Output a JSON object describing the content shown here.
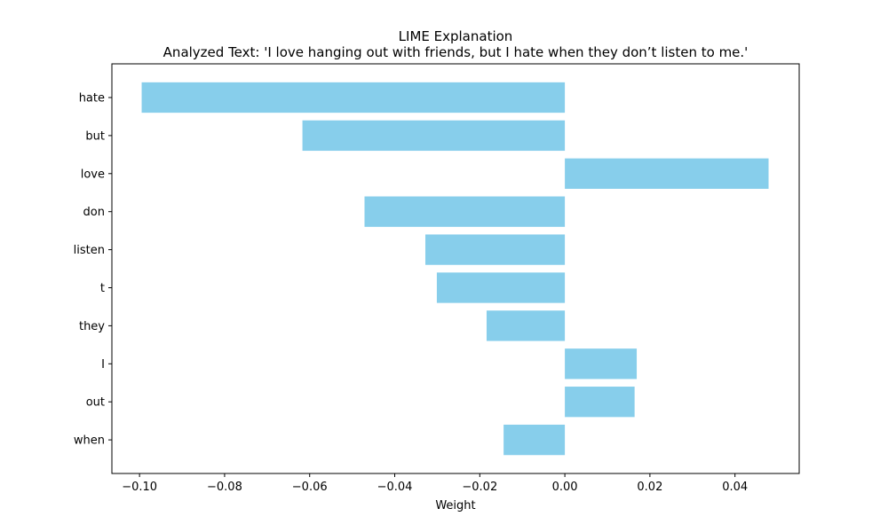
{
  "chart_data": {
    "type": "bar",
    "orientation": "horizontal",
    "title": "LIME Explanation",
    "subtitle": "Analyzed Text: 'I love hanging out with friends, but I hate when they don’t listen to me.'",
    "xlabel": "Weight",
    "ylabel": "",
    "categories": [
      "hate",
      "but",
      "love",
      "don",
      "listen",
      "t",
      "they",
      "I",
      "out",
      "when"
    ],
    "values": [
      -0.0995,
      -0.0617,
      0.0479,
      -0.0471,
      -0.0328,
      -0.0301,
      -0.0184,
      0.0169,
      0.0164,
      -0.0144
    ],
    "xlim": [
      -0.1065,
      0.0551
    ],
    "xticks": [
      -0.1,
      -0.08,
      -0.06,
      -0.04,
      -0.02,
      0.0,
      0.02,
      0.04
    ],
    "xtick_labels": [
      "−0.10",
      "−0.08",
      "−0.06",
      "−0.04",
      "−0.02",
      "0.00",
      "0.02",
      "0.04"
    ],
    "bar_color": "#87CEEB",
    "grid": false,
    "legend": "none"
  }
}
